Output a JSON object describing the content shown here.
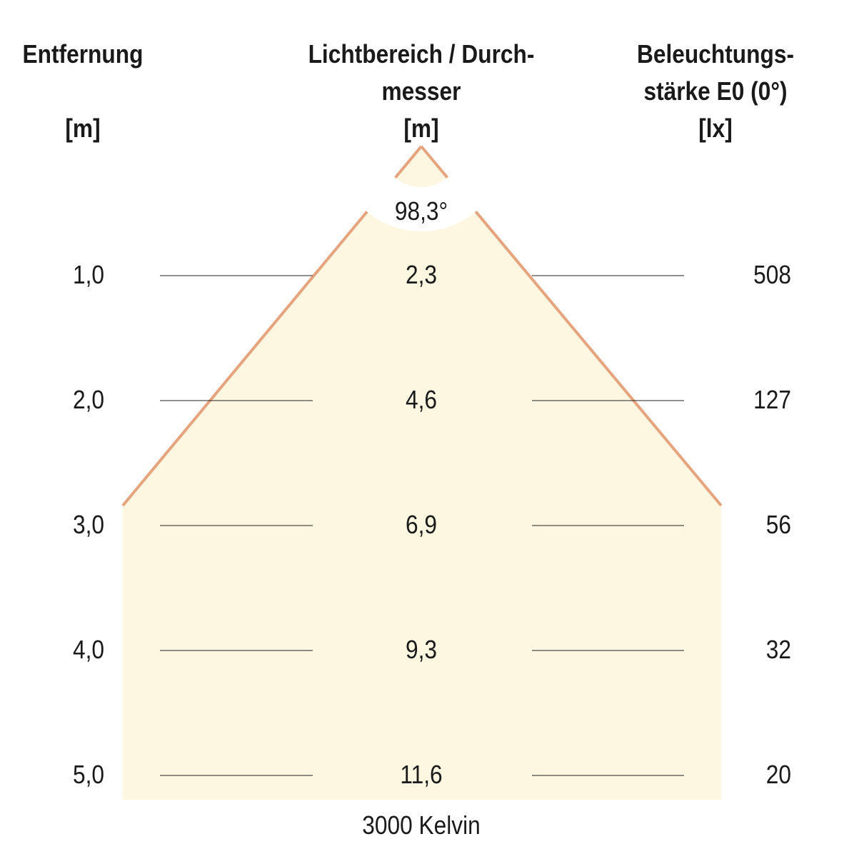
{
  "headers": {
    "distance": {
      "title": "Entfernung",
      "unit": "[m]"
    },
    "diameter": {
      "title_line1": "Lichtbereich / Durch-",
      "title_line2": "messer",
      "unit": "[m]"
    },
    "illuminance": {
      "title_line1": "Beleuchtungs-",
      "title_line2": "stärke E0 (0°)",
      "unit": "[lx]"
    }
  },
  "beam_angle": "98,3°",
  "rows": [
    {
      "distance": "1,0",
      "diameter": "2,3",
      "illuminance": "508"
    },
    {
      "distance": "2,0",
      "diameter": "4,6",
      "illuminance": "127"
    },
    {
      "distance": "3,0",
      "diameter": "6,9",
      "illuminance": "56"
    },
    {
      "distance": "4,0",
      "diameter": "9,3",
      "illuminance": "32"
    },
    {
      "distance": "5,0",
      "diameter": "11,6",
      "illuminance": "20"
    }
  ],
  "color_temperature": "3000 Kelvin",
  "colors": {
    "cone_fill": "#fdf6e0",
    "cone_edge": "#e6a47e",
    "text": "#1a1a1a"
  }
}
